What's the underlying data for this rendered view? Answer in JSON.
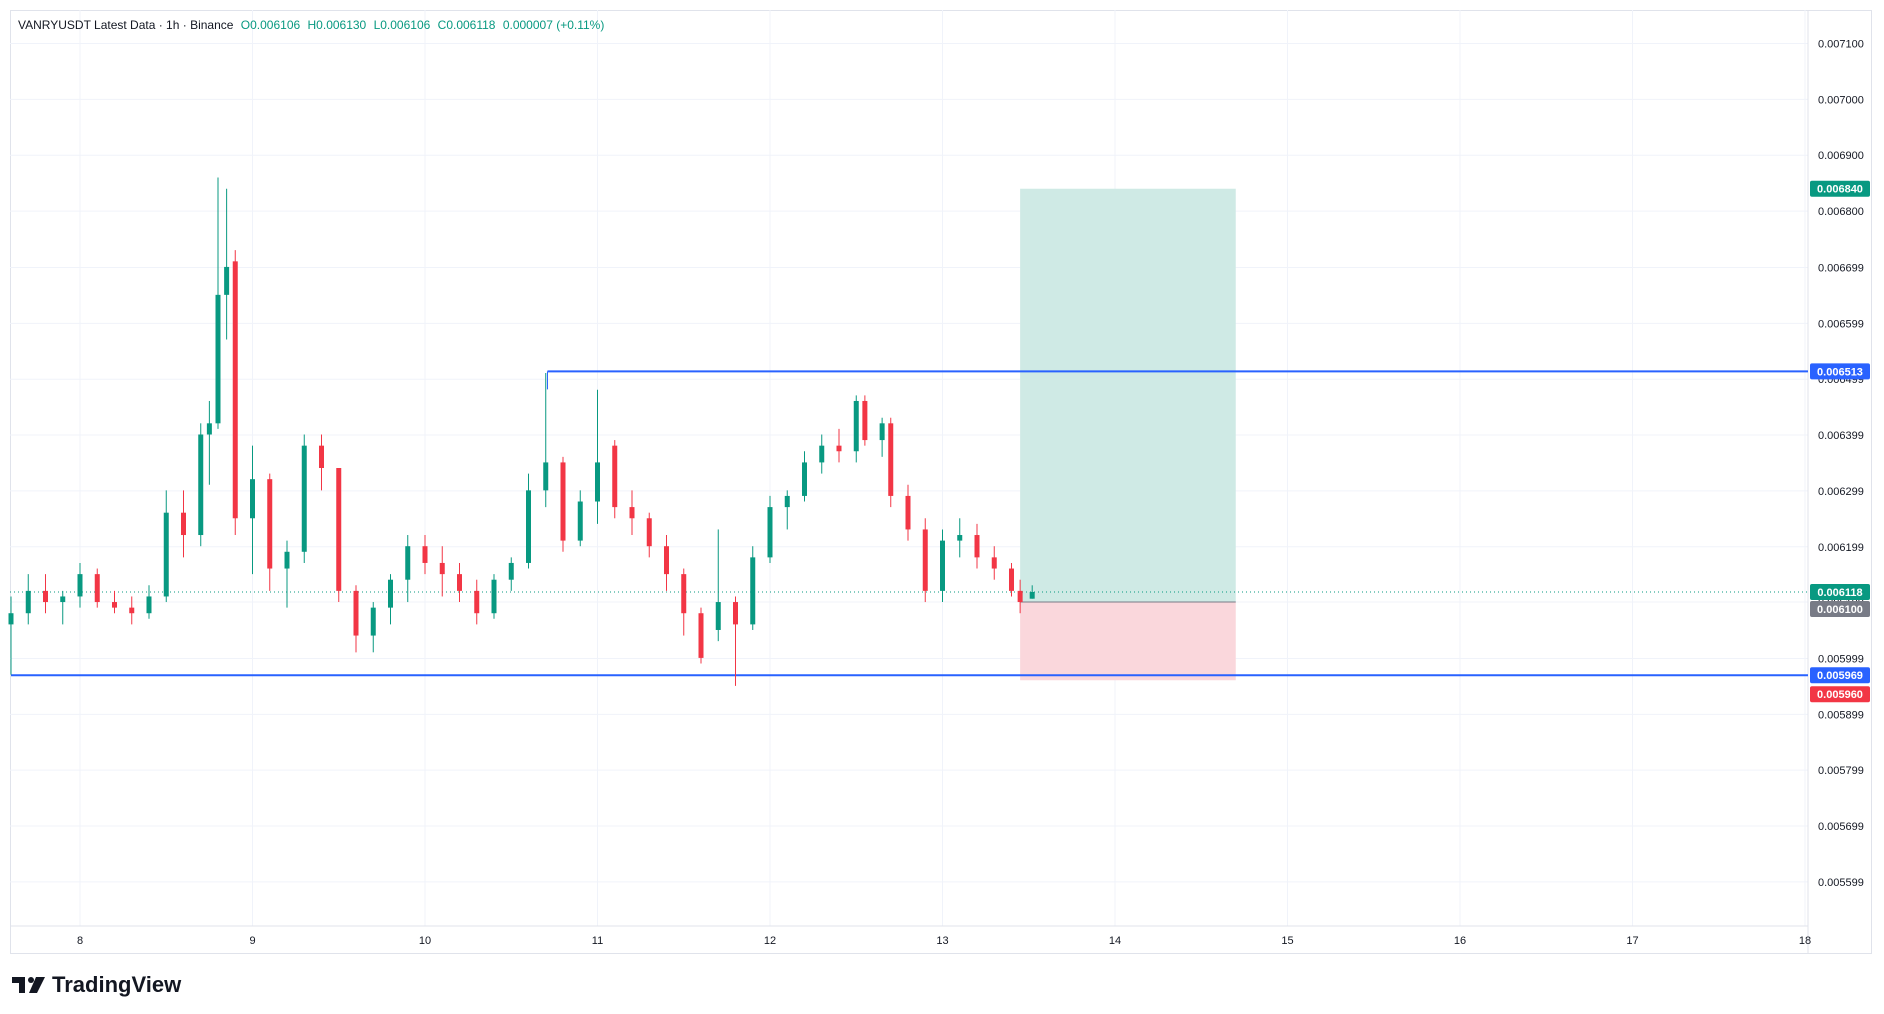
{
  "header": {
    "symbol": "VANRYUSDT Latest Data · 1h · Binance",
    "open": "O0.006106",
    "high": "H0.006130",
    "low": "L0.006106",
    "close": "C0.006118",
    "change": "0.000007 (+0.11%)"
  },
  "brand": {
    "name": "TradingView",
    "icon": "tradingview-logo-icon"
  },
  "colors": {
    "up": "#089981",
    "down": "#f23645",
    "level_line": "#2962ff",
    "profit_zone": "#cfeae5",
    "loss_zone": "#fad7dc",
    "grid": "#f0f3fa"
  },
  "chart_data": {
    "type": "candlestick",
    "title": "VANRYUSDT Latest Data · 1h · Binance",
    "x_ticks": [
      "8",
      "9",
      "10",
      "11",
      "12",
      "13",
      "14",
      "15",
      "16",
      "17",
      "18"
    ],
    "y_ticks": [
      "0.007100",
      "0.007000",
      "0.006900",
      "0.006800",
      "0.006699",
      "0.006599",
      "0.006499",
      "0.006399",
      "0.006299",
      "0.006199",
      "0.006100",
      "0.005999",
      "0.005899",
      "0.005799",
      "0.005699",
      "0.005599"
    ],
    "ylim": [
      0.00552,
      0.00716
    ],
    "xlim_days": [
      7.6,
      18.0
    ],
    "grid": true,
    "horizontal_levels": [
      {
        "price": 0.006513,
        "label": "0.006513",
        "start_day": 10.71
      },
      {
        "price": 0.005969,
        "label": "0.005969",
        "start_day": 7.6
      }
    ],
    "position_tool": {
      "entry": 0.0061,
      "target": 0.00684,
      "stop": 0.00596,
      "start_day": 13.45,
      "end_day": 14.7,
      "labels": {
        "target": "0.006840",
        "entry": "0.006100",
        "stop": "0.005960"
      }
    },
    "last_price": {
      "value": 0.006118,
      "label": "0.006118"
    },
    "candles": [
      {
        "t": 7.6,
        "o": 0.00606,
        "h": 0.00611,
        "l": 0.00597,
        "c": 0.00608
      },
      {
        "t": 7.7,
        "o": 0.00608,
        "h": 0.00615,
        "l": 0.00606,
        "c": 0.00612
      },
      {
        "t": 7.8,
        "o": 0.00612,
        "h": 0.00615,
        "l": 0.00608,
        "c": 0.0061
      },
      {
        "t": 7.9,
        "o": 0.0061,
        "h": 0.00612,
        "l": 0.00606,
        "c": 0.00611
      },
      {
        "t": 8.0,
        "o": 0.00611,
        "h": 0.00617,
        "l": 0.00609,
        "c": 0.00615
      },
      {
        "t": 8.1,
        "o": 0.00615,
        "h": 0.00616,
        "l": 0.00609,
        "c": 0.0061
      },
      {
        "t": 8.2,
        "o": 0.0061,
        "h": 0.00612,
        "l": 0.00608,
        "c": 0.00609
      },
      {
        "t": 8.3,
        "o": 0.00609,
        "h": 0.00611,
        "l": 0.00606,
        "c": 0.00608
      },
      {
        "t": 8.4,
        "o": 0.00608,
        "h": 0.00613,
        "l": 0.00607,
        "c": 0.00611
      },
      {
        "t": 8.5,
        "o": 0.00611,
        "h": 0.0063,
        "l": 0.0061,
        "c": 0.00626
      },
      {
        "t": 8.6,
        "o": 0.00626,
        "h": 0.0063,
        "l": 0.00618,
        "c": 0.00622
      },
      {
        "t": 8.7,
        "o": 0.00622,
        "h": 0.00642,
        "l": 0.0062,
        "c": 0.0064
      },
      {
        "t": 8.75,
        "o": 0.0064,
        "h": 0.00646,
        "l": 0.00631,
        "c": 0.00642
      },
      {
        "t": 8.8,
        "o": 0.00642,
        "h": 0.00686,
        "l": 0.00641,
        "c": 0.00665
      },
      {
        "t": 8.85,
        "o": 0.00665,
        "h": 0.00684,
        "l": 0.00657,
        "c": 0.0067
      },
      {
        "t": 8.9,
        "o": 0.00671,
        "h": 0.00673,
        "l": 0.00622,
        "c": 0.00625
      },
      {
        "t": 9.0,
        "o": 0.00625,
        "h": 0.00638,
        "l": 0.00615,
        "c": 0.00632
      },
      {
        "t": 9.1,
        "o": 0.00632,
        "h": 0.00633,
        "l": 0.00612,
        "c": 0.00616
      },
      {
        "t": 9.2,
        "o": 0.00616,
        "h": 0.00621,
        "l": 0.00609,
        "c": 0.00619
      },
      {
        "t": 9.3,
        "o": 0.00619,
        "h": 0.0064,
        "l": 0.00617,
        "c": 0.00638
      },
      {
        "t": 9.4,
        "o": 0.00638,
        "h": 0.0064,
        "l": 0.0063,
        "c": 0.00634
      },
      {
        "t": 9.5,
        "o": 0.00634,
        "h": 0.00634,
        "l": 0.0061,
        "c": 0.00612
      },
      {
        "t": 9.6,
        "o": 0.00612,
        "h": 0.00613,
        "l": 0.00601,
        "c": 0.00604
      },
      {
        "t": 9.7,
        "o": 0.00604,
        "h": 0.0061,
        "l": 0.00601,
        "c": 0.00609
      },
      {
        "t": 9.8,
        "o": 0.00609,
        "h": 0.00615,
        "l": 0.00606,
        "c": 0.00614
      },
      {
        "t": 9.9,
        "o": 0.00614,
        "h": 0.00622,
        "l": 0.0061,
        "c": 0.0062
      },
      {
        "t": 10.0,
        "o": 0.0062,
        "h": 0.00622,
        "l": 0.00615,
        "c": 0.00617
      },
      {
        "t": 10.1,
        "o": 0.00617,
        "h": 0.0062,
        "l": 0.00611,
        "c": 0.00615
      },
      {
        "t": 10.2,
        "o": 0.00615,
        "h": 0.00617,
        "l": 0.0061,
        "c": 0.00612
      },
      {
        "t": 10.3,
        "o": 0.00612,
        "h": 0.00614,
        "l": 0.00606,
        "c": 0.00608
      },
      {
        "t": 10.4,
        "o": 0.00608,
        "h": 0.00615,
        "l": 0.00607,
        "c": 0.00614
      },
      {
        "t": 10.5,
        "o": 0.00614,
        "h": 0.00618,
        "l": 0.00612,
        "c": 0.00617
      },
      {
        "t": 10.6,
        "o": 0.00617,
        "h": 0.00633,
        "l": 0.00616,
        "c": 0.0063
      },
      {
        "t": 10.7,
        "o": 0.0063,
        "h": 0.00651,
        "l": 0.00627,
        "c": 0.00635
      },
      {
        "t": 10.8,
        "o": 0.00635,
        "h": 0.00636,
        "l": 0.00619,
        "c": 0.00621
      },
      {
        "t": 10.9,
        "o": 0.00621,
        "h": 0.0063,
        "l": 0.0062,
        "c": 0.00628
      },
      {
        "t": 11.0,
        "o": 0.00628,
        "h": 0.00648,
        "l": 0.00624,
        "c": 0.00635
      },
      {
        "t": 11.1,
        "o": 0.00638,
        "h": 0.00639,
        "l": 0.00625,
        "c": 0.00627
      },
      {
        "t": 11.2,
        "o": 0.00627,
        "h": 0.0063,
        "l": 0.00622,
        "c": 0.00625
      },
      {
        "t": 11.3,
        "o": 0.00625,
        "h": 0.00626,
        "l": 0.00618,
        "c": 0.0062
      },
      {
        "t": 11.4,
        "o": 0.0062,
        "h": 0.00622,
        "l": 0.00612,
        "c": 0.00615
      },
      {
        "t": 11.5,
        "o": 0.00615,
        "h": 0.00616,
        "l": 0.00604,
        "c": 0.00608
      },
      {
        "t": 11.6,
        "o": 0.00608,
        "h": 0.00609,
        "l": 0.00599,
        "c": 0.006
      },
      {
        "t": 11.7,
        "o": 0.00605,
        "h": 0.00623,
        "l": 0.00603,
        "c": 0.0061
      },
      {
        "t": 11.8,
        "o": 0.0061,
        "h": 0.00611,
        "l": 0.00595,
        "c": 0.00606
      },
      {
        "t": 11.9,
        "o": 0.00606,
        "h": 0.0062,
        "l": 0.00605,
        "c": 0.00618
      },
      {
        "t": 12.0,
        "o": 0.00618,
        "h": 0.00629,
        "l": 0.00617,
        "c": 0.00627
      },
      {
        "t": 12.1,
        "o": 0.00627,
        "h": 0.0063,
        "l": 0.00623,
        "c": 0.00629
      },
      {
        "t": 12.2,
        "o": 0.00629,
        "h": 0.00637,
        "l": 0.00628,
        "c": 0.00635
      },
      {
        "t": 12.3,
        "o": 0.00635,
        "h": 0.0064,
        "l": 0.00633,
        "c": 0.00638
      },
      {
        "t": 12.4,
        "o": 0.00638,
        "h": 0.00641,
        "l": 0.00635,
        "c": 0.00637
      },
      {
        "t": 12.5,
        "o": 0.00637,
        "h": 0.00647,
        "l": 0.00635,
        "c": 0.00646
      },
      {
        "t": 12.55,
        "o": 0.00646,
        "h": 0.00647,
        "l": 0.00638,
        "c": 0.00639
      },
      {
        "t": 12.65,
        "o": 0.00639,
        "h": 0.00643,
        "l": 0.00636,
        "c": 0.00642
      },
      {
        "t": 12.7,
        "o": 0.00642,
        "h": 0.00643,
        "l": 0.00627,
        "c": 0.00629
      },
      {
        "t": 12.8,
        "o": 0.00629,
        "h": 0.00631,
        "l": 0.00621,
        "c": 0.00623
      },
      {
        "t": 12.9,
        "o": 0.00623,
        "h": 0.00625,
        "l": 0.0061,
        "c": 0.00612
      },
      {
        "t": 13.0,
        "o": 0.00612,
        "h": 0.00623,
        "l": 0.0061,
        "c": 0.00621
      },
      {
        "t": 13.1,
        "o": 0.00621,
        "h": 0.00625,
        "l": 0.00618,
        "c": 0.00622
      },
      {
        "t": 13.2,
        "o": 0.00622,
        "h": 0.00624,
        "l": 0.00616,
        "c": 0.00618
      },
      {
        "t": 13.3,
        "o": 0.00618,
        "h": 0.0062,
        "l": 0.00614,
        "c": 0.00616
      },
      {
        "t": 13.4,
        "o": 0.00616,
        "h": 0.00617,
        "l": 0.00611,
        "c": 0.00612
      },
      {
        "t": 13.45,
        "o": 0.00612,
        "h": 0.00614,
        "l": 0.00608,
        "c": 0.0061
      },
      {
        "t": 13.52,
        "o": 0.006106,
        "h": 0.00613,
        "l": 0.006106,
        "c": 0.006118
      }
    ]
  }
}
